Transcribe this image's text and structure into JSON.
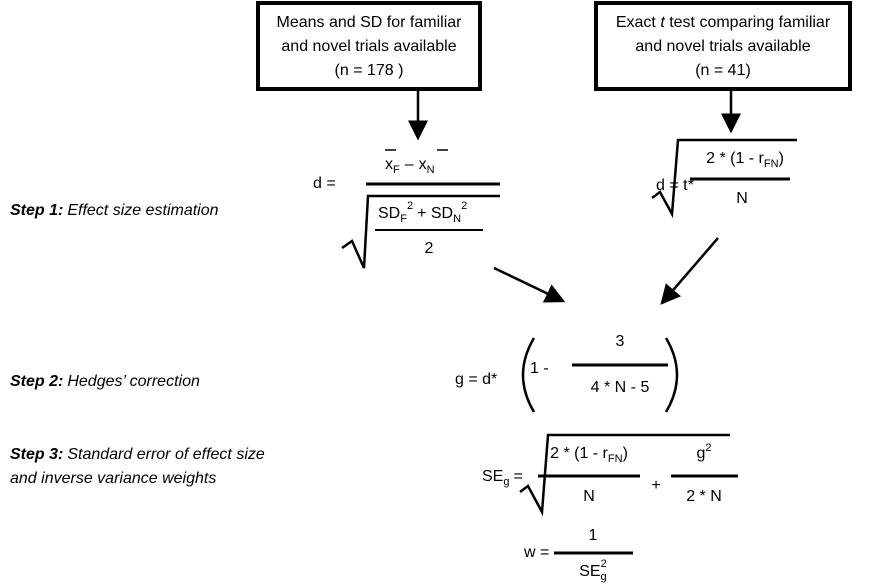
{
  "boxes": [
    {
      "lines": [
        "Means and SD for familiar",
        "and novel trials available",
        "(n = 178 )"
      ]
    },
    {
      "line1": {
        "pre": "Exact ",
        "emph": "t",
        "post": " test comparing familiar"
      },
      "lines": [
        "and novel trials available",
        "(n = 41)"
      ]
    }
  ],
  "steps": [
    {
      "label": "Step 1:",
      "text": "Effect size estimation"
    },
    {
      "label": "Step 2:",
      "text": "Hedges’ correction"
    },
    {
      "label": "Step 3:",
      "text": "Standard error of effect size",
      "text2": "and inverse variance weights"
    }
  ],
  "formulas": {
    "d_means": {
      "lhs": "d =",
      "num": [
        "x",
        "F",
        "–",
        "x",
        "N"
      ],
      "den_num": [
        "SD",
        "F",
        "2",
        "+ SD",
        "N",
        "2"
      ],
      "den_den": "2"
    },
    "d_t": {
      "lhs": "d = t*",
      "num": [
        "2 * (1 - r",
        "FN",
        ")"
      ],
      "den": "N"
    },
    "hedges": {
      "lhs": "g = d*",
      "term": "1 -",
      "num": "3",
      "den": "4 * N - 5"
    },
    "se": {
      "lhs": [
        "SE",
        "g",
        "="
      ],
      "t1_num": [
        "2 * (1 - r",
        "FN",
        ")"
      ],
      "t1_den": "N",
      "plus": "+",
      "t2_num": [
        "g",
        "2"
      ],
      "t2_den": "2 * N"
    },
    "w": {
      "lhs": "w =",
      "num": "1",
      "den": [
        "SE",
        "g",
        "2"
      ]
    }
  }
}
